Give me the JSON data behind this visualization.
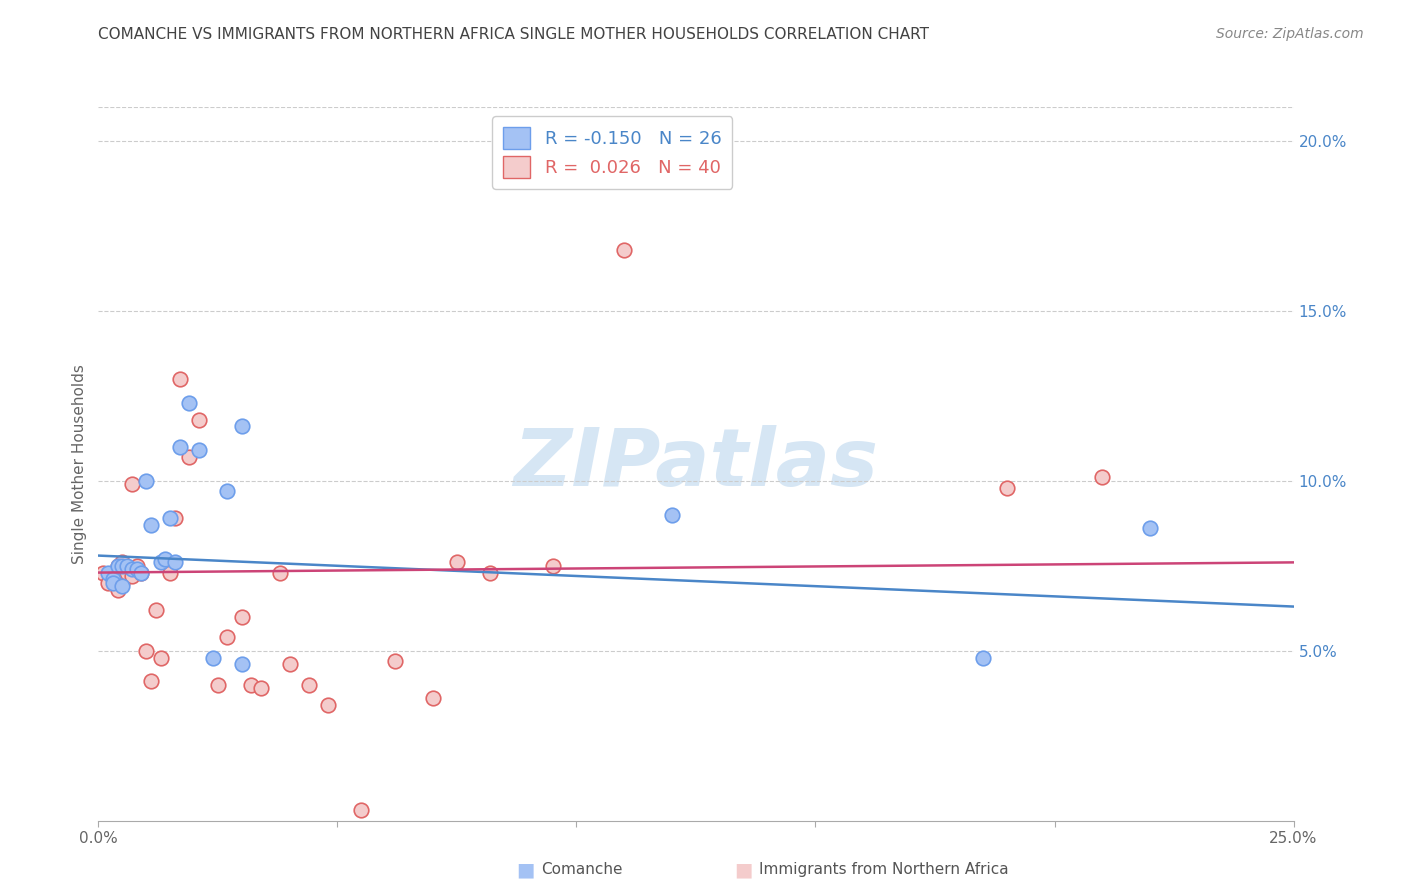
{
  "title": "COMANCHE VS IMMIGRANTS FROM NORTHERN AFRICA SINGLE MOTHER HOUSEHOLDS CORRELATION CHART",
  "source": "Source: ZipAtlas.com",
  "ylabel": "Single Mother Households",
  "xlim": [
    0.0,
    0.25
  ],
  "ylim": [
    0.0,
    0.21
  ],
  "yticks": [
    0.05,
    0.1,
    0.15,
    0.2
  ],
  "ytick_labels": [
    "5.0%",
    "10.0%",
    "15.0%",
    "20.0%"
  ],
  "legend_blue_r": "-0.150",
  "legend_blue_n": "26",
  "legend_pink_r": "0.026",
  "legend_pink_n": "40",
  "legend_label_blue": "Comanche",
  "legend_label_pink": "Immigrants from Northern Africa",
  "blue_color": "#a4c2f4",
  "pink_color": "#f4cccc",
  "blue_edge_color": "#6d9eeb",
  "pink_edge_color": "#e06666",
  "blue_line_color": "#4a86c8",
  "pink_line_color": "#cc4477",
  "title_color": "#434343",
  "right_axis_color": "#4a86c8",
  "watermark_color": "#cfe2f3",
  "watermark": "ZIPatlas",
  "comanche_x": [
    0.002,
    0.003,
    0.003,
    0.004,
    0.005,
    0.005,
    0.006,
    0.007,
    0.008,
    0.009,
    0.01,
    0.011,
    0.013,
    0.014,
    0.015,
    0.016,
    0.017,
    0.019,
    0.021,
    0.024,
    0.027,
    0.03,
    0.12,
    0.185,
    0.22,
    0.03
  ],
  "comanche_y": [
    0.073,
    0.071,
    0.07,
    0.075,
    0.075,
    0.069,
    0.075,
    0.074,
    0.074,
    0.073,
    0.1,
    0.087,
    0.076,
    0.077,
    0.089,
    0.076,
    0.11,
    0.123,
    0.109,
    0.048,
    0.097,
    0.046,
    0.09,
    0.048,
    0.086,
    0.116
  ],
  "africa_x": [
    0.001,
    0.002,
    0.003,
    0.004,
    0.004,
    0.005,
    0.005,
    0.006,
    0.007,
    0.007,
    0.008,
    0.009,
    0.01,
    0.011,
    0.012,
    0.013,
    0.014,
    0.015,
    0.016,
    0.017,
    0.019,
    0.021,
    0.025,
    0.027,
    0.03,
    0.032,
    0.034,
    0.038,
    0.04,
    0.044,
    0.048,
    0.055,
    0.062,
    0.07,
    0.075,
    0.082,
    0.095,
    0.11,
    0.19,
    0.21
  ],
  "africa_y": [
    0.073,
    0.07,
    0.072,
    0.068,
    0.075,
    0.07,
    0.076,
    0.073,
    0.072,
    0.099,
    0.075,
    0.073,
    0.05,
    0.041,
    0.062,
    0.048,
    0.076,
    0.073,
    0.089,
    0.13,
    0.107,
    0.118,
    0.04,
    0.054,
    0.06,
    0.04,
    0.039,
    0.073,
    0.046,
    0.04,
    0.034,
    0.003,
    0.047,
    0.036,
    0.076,
    0.073,
    0.075,
    0.168,
    0.098,
    0.101
  ]
}
